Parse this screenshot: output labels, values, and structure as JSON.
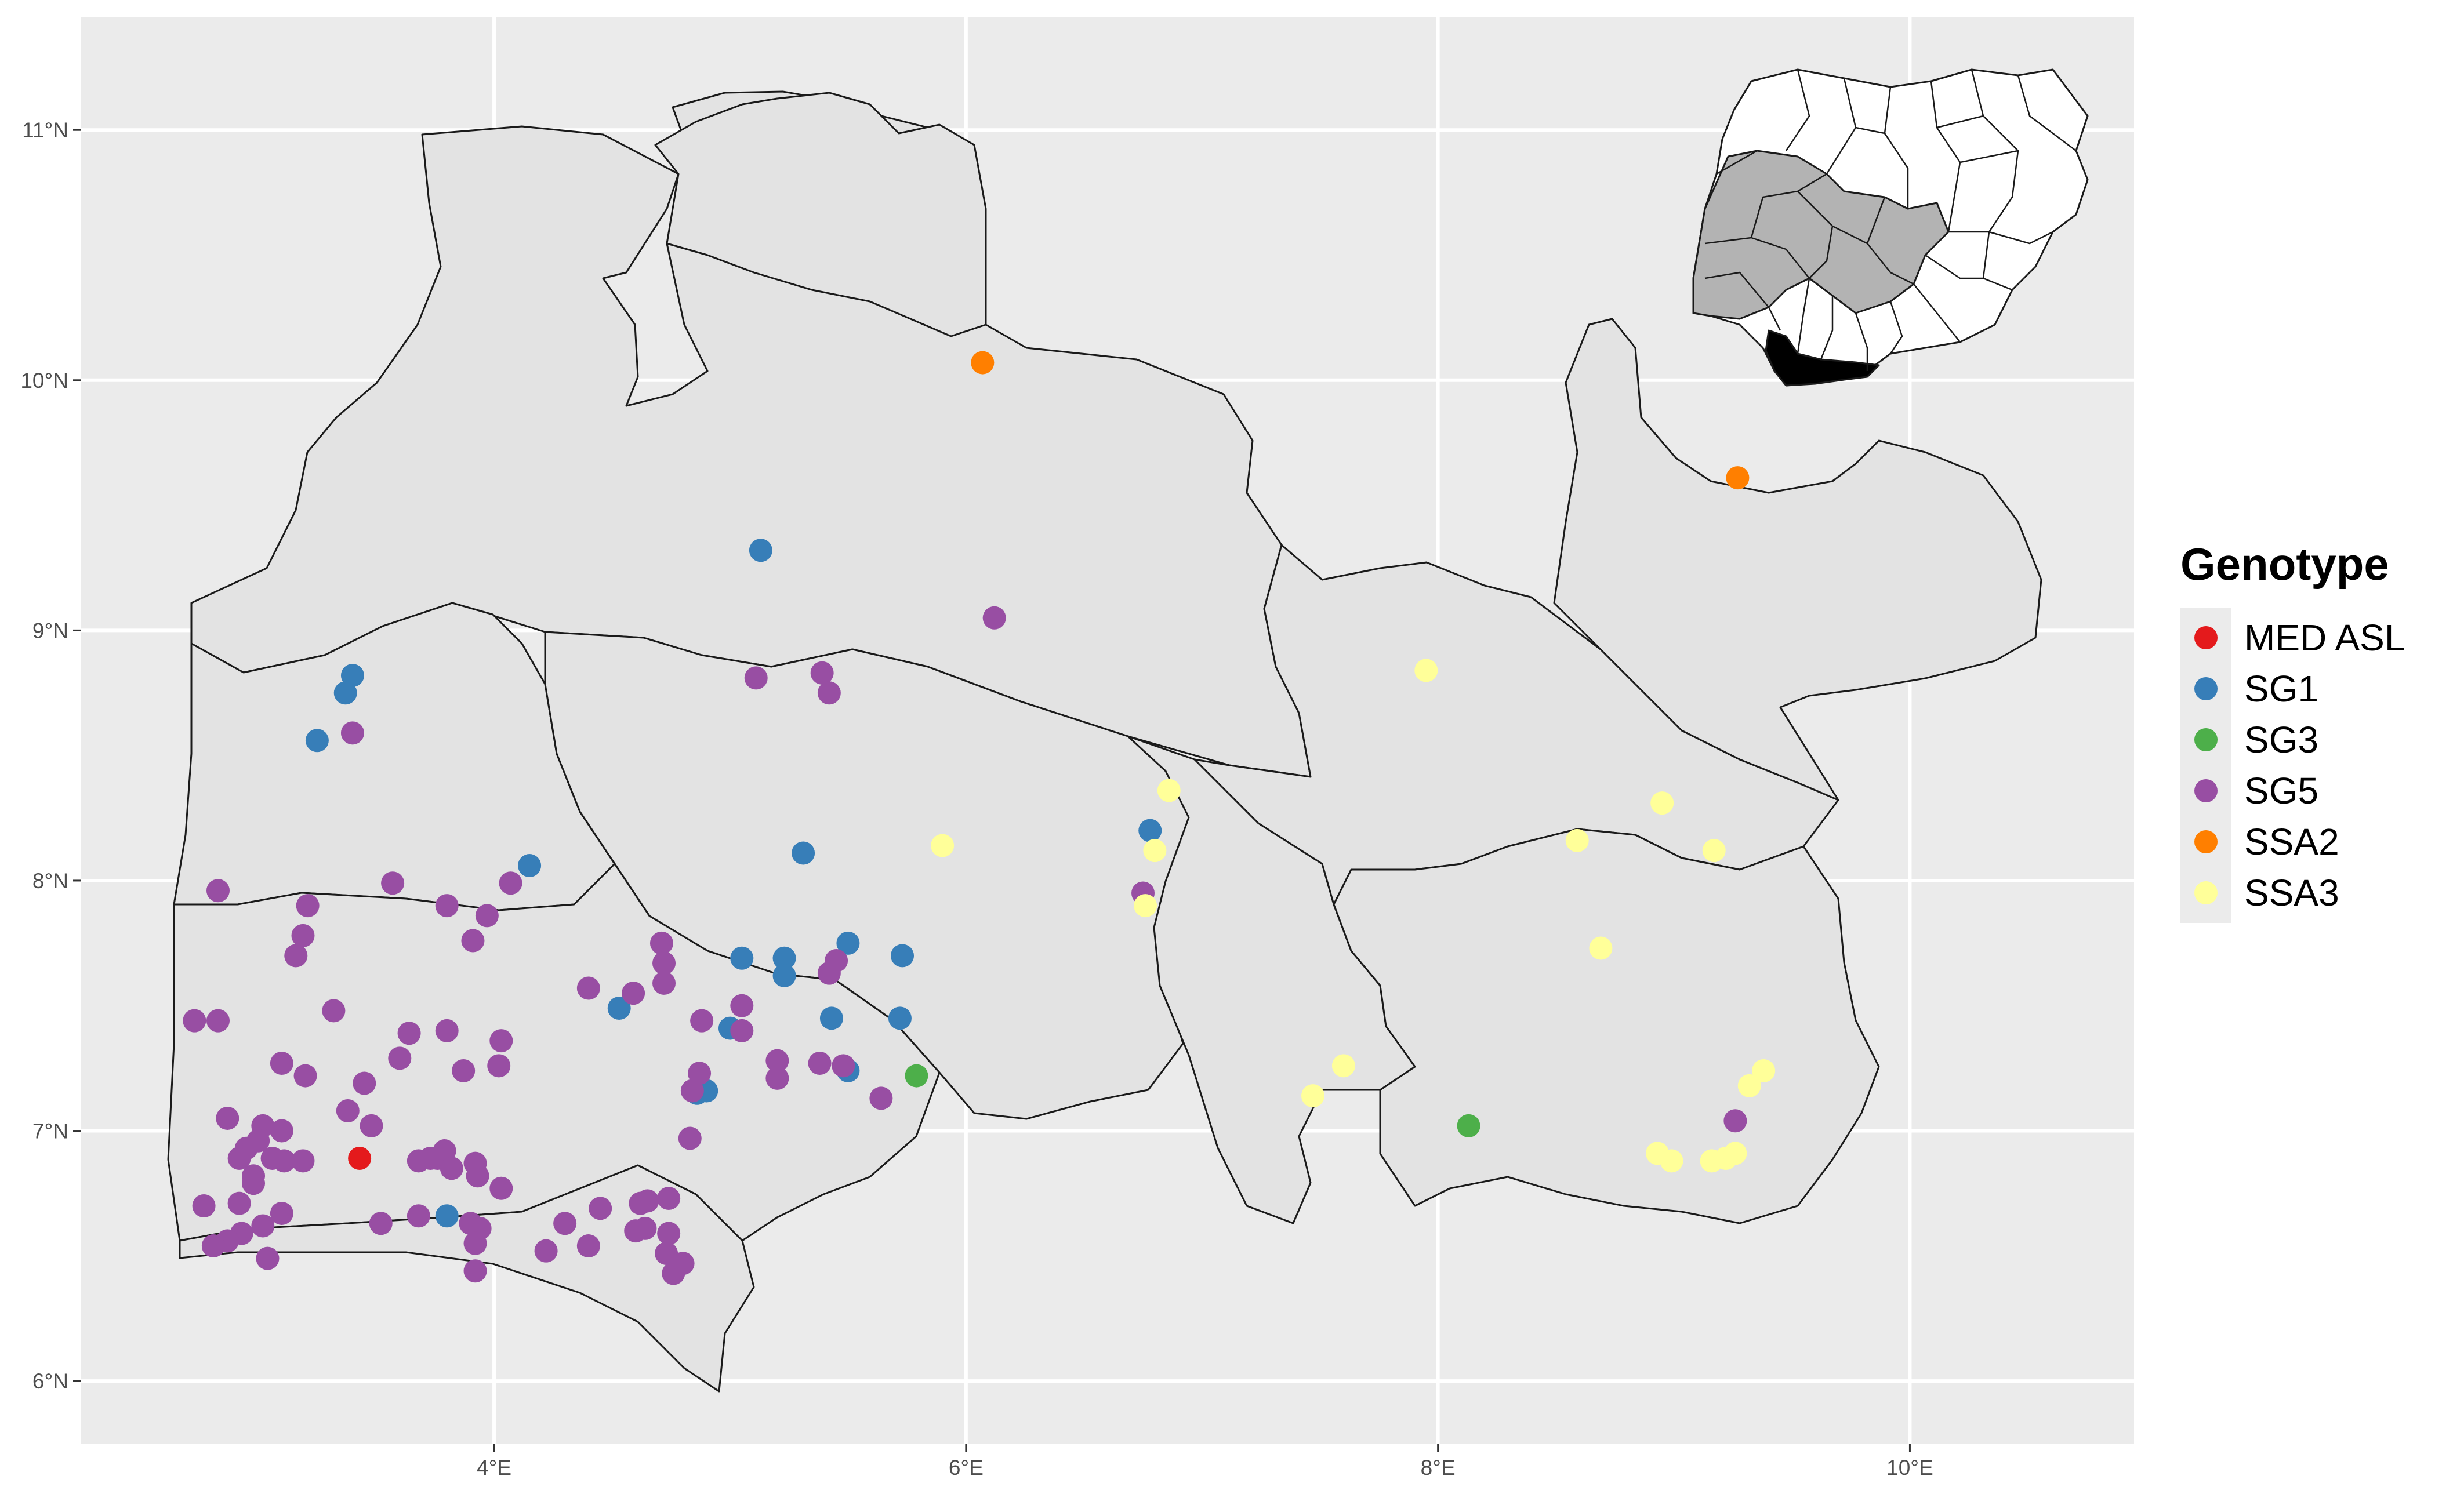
{
  "chart_data": {
    "type": "scatter",
    "title": "",
    "xlabel": "",
    "ylabel": "",
    "xlim": [
      2.25,
      10.95
    ],
    "ylim": [
      5.75,
      11.45
    ],
    "x_ticks": [
      {
        "value": 4,
        "label": "4°E"
      },
      {
        "value": 6,
        "label": "6°E"
      },
      {
        "value": 8,
        "label": "8°E"
      },
      {
        "value": 10,
        "label": "10°E"
      }
    ],
    "y_ticks": [
      {
        "value": 6,
        "label": "6°N"
      },
      {
        "value": 7,
        "label": "7°N"
      },
      {
        "value": 8,
        "label": "8°N"
      },
      {
        "value": 9,
        "label": "9°N"
      },
      {
        "value": 10,
        "label": "10°N"
      },
      {
        "value": 11,
        "label": "11°N"
      }
    ],
    "grid": true,
    "legend": {
      "title": "Genotype",
      "position": "right"
    },
    "series": [
      {
        "name": "MED ASL",
        "color": "#E41A1C",
        "points": [
          [
            3.43,
            6.89
          ]
        ]
      },
      {
        "name": "SG1",
        "color": "#377EB8",
        "points": [
          [
            3.4,
            8.82
          ],
          [
            3.37,
            8.75
          ],
          [
            3.25,
            8.56
          ],
          [
            5.13,
            9.32
          ],
          [
            4.15,
            8.06
          ],
          [
            5.31,
            8.11
          ],
          [
            6.78,
            8.2
          ],
          [
            4.53,
            7.49
          ],
          [
            5.05,
            7.69
          ],
          [
            5.23,
            7.69
          ],
          [
            5.23,
            7.62
          ],
          [
            5.5,
            7.75
          ],
          [
            5.73,
            7.7
          ],
          [
            5.43,
            7.45
          ],
          [
            5.72,
            7.45
          ],
          [
            5.0,
            7.41
          ],
          [
            5.5,
            7.24
          ],
          [
            4.9,
            7.16
          ],
          [
            4.86,
            7.15
          ],
          [
            3.8,
            6.66
          ]
        ]
      },
      {
        "name": "SG3",
        "color": "#4DAF4A",
        "points": [
          [
            5.79,
            7.22
          ],
          [
            8.13,
            7.02
          ]
        ]
      },
      {
        "name": "SG5",
        "color": "#984EA3",
        "points": [
          [
            6.12,
            9.05
          ],
          [
            5.11,
            8.81
          ],
          [
            5.39,
            8.83
          ],
          [
            5.42,
            8.75
          ],
          [
            3.4,
            8.59
          ],
          [
            2.83,
            7.96
          ],
          [
            3.57,
            7.99
          ],
          [
            4.07,
            7.99
          ],
          [
            3.21,
            7.9
          ],
          [
            3.19,
            7.78
          ],
          [
            3.16,
            7.7
          ],
          [
            3.8,
            7.9
          ],
          [
            3.97,
            7.86
          ],
          [
            3.91,
            7.76
          ],
          [
            4.71,
            7.75
          ],
          [
            4.72,
            7.67
          ],
          [
            4.72,
            7.59
          ],
          [
            4.4,
            7.57
          ],
          [
            4.59,
            7.55
          ],
          [
            5.45,
            7.68
          ],
          [
            5.42,
            7.63
          ],
          [
            6.75,
            7.95
          ],
          [
            2.73,
            7.44
          ],
          [
            2.83,
            7.44
          ],
          [
            3.32,
            7.48
          ],
          [
            3.64,
            7.39
          ],
          [
            3.8,
            7.4
          ],
          [
            4.03,
            7.36
          ],
          [
            4.02,
            7.26
          ],
          [
            3.87,
            7.24
          ],
          [
            3.6,
            7.29
          ],
          [
            3.1,
            7.27
          ],
          [
            3.2,
            7.22
          ],
          [
            3.45,
            7.19
          ],
          [
            5.05,
            7.5
          ],
          [
            4.88,
            7.44
          ],
          [
            5.05,
            7.4
          ],
          [
            5.2,
            7.28
          ],
          [
            5.2,
            7.21
          ],
          [
            5.38,
            7.27
          ],
          [
            5.48,
            7.26
          ],
          [
            5.64,
            7.13
          ],
          [
            4.87,
            7.23
          ],
          [
            4.84,
            7.16
          ],
          [
            4.83,
            6.97
          ],
          [
            3.38,
            7.08
          ],
          [
            3.48,
            7.02
          ],
          [
            2.87,
            7.05
          ],
          [
            3.02,
            7.02
          ],
          [
            3.1,
            7.0
          ],
          [
            3.0,
            6.96
          ],
          [
            2.95,
            6.93
          ],
          [
            2.92,
            6.89
          ],
          [
            3.06,
            6.89
          ],
          [
            3.11,
            6.88
          ],
          [
            3.19,
            6.88
          ],
          [
            2.98,
            6.82
          ],
          [
            2.98,
            6.79
          ],
          [
            3.68,
            6.88
          ],
          [
            3.73,
            6.89
          ],
          [
            3.79,
            6.92
          ],
          [
            3.76,
            6.89
          ],
          [
            3.82,
            6.85
          ],
          [
            3.92,
            6.87
          ],
          [
            3.93,
            6.82
          ],
          [
            4.03,
            6.77
          ],
          [
            2.77,
            6.7
          ],
          [
            2.92,
            6.71
          ],
          [
            3.1,
            6.67
          ],
          [
            3.02,
            6.62
          ],
          [
            2.93,
            6.59
          ],
          [
            2.87,
            6.56
          ],
          [
            2.81,
            6.54
          ],
          [
            3.04,
            6.49
          ],
          [
            3.52,
            6.63
          ],
          [
            3.68,
            6.66
          ],
          [
            3.9,
            6.63
          ],
          [
            3.94,
            6.61
          ],
          [
            3.92,
            6.55
          ],
          [
            3.92,
            6.44
          ],
          [
            4.22,
            6.52
          ],
          [
            4.3,
            6.63
          ],
          [
            4.45,
            6.69
          ],
          [
            4.4,
            6.54
          ],
          [
            4.62,
            6.71
          ],
          [
            4.65,
            6.72
          ],
          [
            4.6,
            6.6
          ],
          [
            4.64,
            6.61
          ],
          [
            4.74,
            6.73
          ],
          [
            4.74,
            6.59
          ],
          [
            4.73,
            6.51
          ],
          [
            4.8,
            6.47
          ],
          [
            4.76,
            6.43
          ],
          [
            9.26,
            7.04
          ]
        ]
      },
      {
        "name": "SSA2",
        "color": "#FF7F00",
        "points": [
          [
            6.07,
            10.07
          ],
          [
            9.27,
            9.61
          ]
        ]
      },
      {
        "name": "SSA3",
        "color": "#FFFF99",
        "points": [
          [
            6.86,
            8.36
          ],
          [
            5.9,
            8.14
          ],
          [
            6.8,
            8.12
          ],
          [
            6.76,
            7.9
          ],
          [
            7.95,
            8.84
          ],
          [
            8.59,
            8.16
          ],
          [
            8.95,
            8.31
          ],
          [
            9.17,
            8.12
          ],
          [
            8.69,
            7.73
          ],
          [
            7.6,
            7.26
          ],
          [
            7.47,
            7.14
          ],
          [
            9.38,
            7.24
          ],
          [
            9.32,
            7.18
          ],
          [
            8.93,
            6.91
          ],
          [
            8.99,
            6.88
          ],
          [
            9.16,
            6.88
          ],
          [
            9.22,
            6.89
          ],
          [
            9.26,
            6.91
          ]
        ]
      }
    ]
  },
  "inset": {
    "description_visible": false
  }
}
